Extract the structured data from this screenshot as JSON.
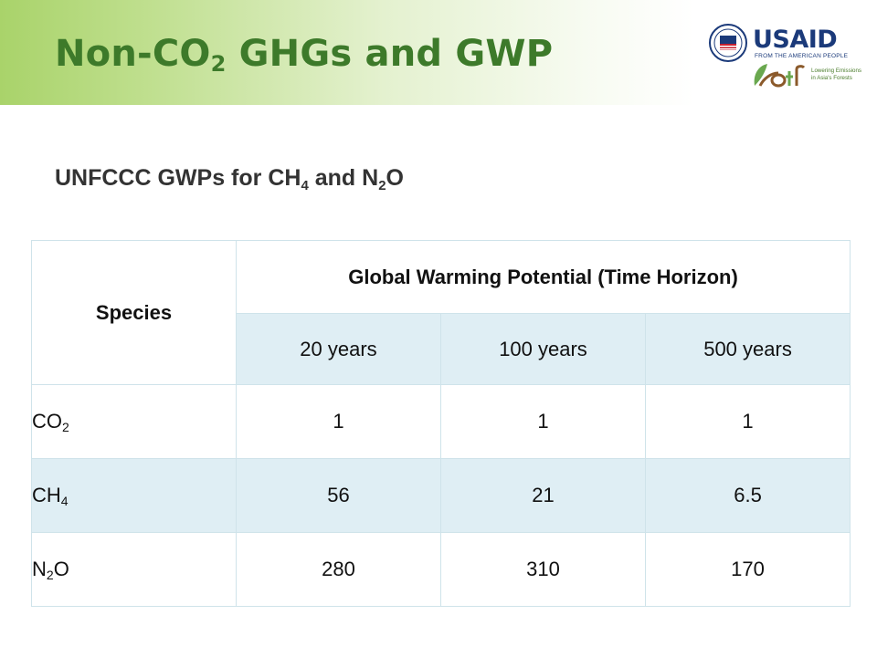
{
  "title": {
    "before": "Non-CO",
    "sub": "2",
    "after": " GHGs and GWP"
  },
  "logos": {
    "usaid_word": "USAID",
    "usaid_tagline": "FROM THE AMERICAN PEOPLE",
    "leaf_tagline_1": "Lowering Emissions",
    "leaf_tagline_2": "in Asia's Forests",
    "brand_blue": "#1b3a7a",
    "brand_green": "#4a7c2b"
  },
  "subtitle": {
    "part1": "UNFCCC GWPs for CH",
    "sub1": "4",
    "part2": " and N",
    "sub2": "2",
    "part3": "O"
  },
  "table": {
    "species_header": "Species",
    "gwp_header": "Global Warming Potential (Time Horizon)",
    "horizons": [
      "20 years",
      "100 years",
      "500 years"
    ],
    "rows": [
      {
        "species_pre": "CO",
        "species_sub": "2",
        "species_post": "",
        "values": [
          "1",
          "1",
          "1"
        ]
      },
      {
        "species_pre": "CH",
        "species_sub": "4",
        "species_post": "",
        "values": [
          "56",
          "21",
          "6.5"
        ]
      },
      {
        "species_pre": "N",
        "species_sub": "2",
        "species_post": "O",
        "values": [
          "280",
          "310",
          "170"
        ]
      }
    ]
  },
  "colors": {
    "title_green": "#3d7a2a",
    "row_shade": "#dfeef4",
    "header_rule": "#4a78b4"
  }
}
